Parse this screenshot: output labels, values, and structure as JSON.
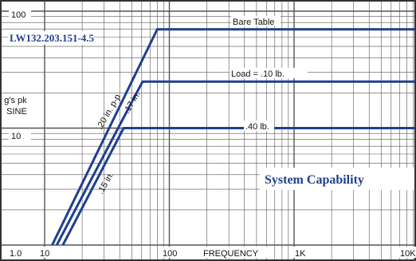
{
  "chart_data": {
    "type": "line",
    "scale": "log-log",
    "grid": true,
    "model_label": "LW132.203.151-4.5",
    "title": "System Capability",
    "xlabel": "FREQUENCY",
    "ylabel": "g's pk\nSINE",
    "xlim": [
      10,
      10000
    ],
    "ylim": [
      1.0,
      100
    ],
    "x_ticks": [
      {
        "value": 10,
        "label": "10"
      },
      {
        "value": 100,
        "label": "100"
      },
      {
        "value": 1000,
        "label": "1K"
      },
      {
        "value": 10000,
        "label": "10K"
      }
    ],
    "y_ticks": [
      {
        "value": 1.0,
        "label": "1.0"
      },
      {
        "value": 10,
        "label": "10"
      },
      {
        "value": 100,
        "label": "100"
      }
    ],
    "series": [
      {
        "name": "Bare Table",
        "points": [
          [
            11.5,
            1.0
          ],
          [
            80,
            70
          ],
          [
            10000,
            70
          ]
        ]
      },
      {
        "name": "Load = .10 lb.",
        "points": [
          [
            12.5,
            1.0
          ],
          [
            61,
            25
          ],
          [
            10000,
            25
          ]
        ]
      },
      {
        "name": ".40 lb.",
        "points": [
          [
            14,
            1.0
          ],
          [
            43,
            10
          ],
          [
            10000,
            10
          ]
        ]
      }
    ],
    "annotations": [
      ".20 in. p-p",
      ".17 in.",
      ".15 in."
    ],
    "colors": {
      "series": "#1f3f8f",
      "grid": "#555555",
      "title": "#1f3f8f",
      "model_label": "#1f3f8f"
    }
  }
}
